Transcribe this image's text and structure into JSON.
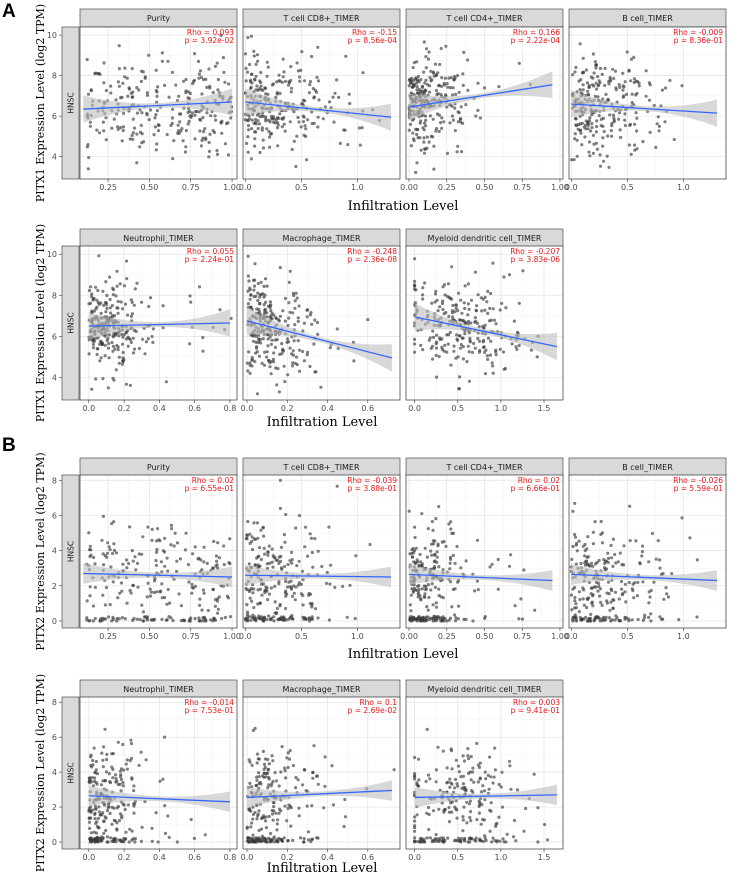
{
  "figure": {
    "blocks": [
      {
        "label": "A",
        "gene": "PITX1"
      },
      {
        "label": "B",
        "gene": "PITX2"
      }
    ],
    "strip_label": "HNSC",
    "colors": {
      "points": "#3b3b3b",
      "line": "#3366ff",
      "band": "#bebebe",
      "stats": "#e41a1c",
      "strip": "#d9d9d9"
    }
  },
  "chart_data": [
    {
      "type": "scatter",
      "block": "A",
      "title": "Purity",
      "xlabel": "Infiltration Level",
      "ylabel": "PITX1 Expression Level (log2 TPM)",
      "xlim": [
        0.08,
        1.03
      ],
      "ylim": [
        2.9,
        10.4
      ],
      "xticks": [
        0.25,
        0.5,
        0.75,
        1.0
      ],
      "xtick_labels": [
        "0.25",
        "0.50",
        "0.75",
        "1.00"
      ],
      "yticks": [
        4,
        6,
        8,
        10
      ],
      "ytick_labels": [
        "4",
        "6",
        "8",
        "10"
      ],
      "rho": "Rho = 0.093",
      "p": "p = 3.92e-02",
      "fit": {
        "x": [
          0.1,
          1.0
        ],
        "y": [
          6.35,
          6.7
        ]
      }
    },
    {
      "type": "scatter",
      "block": "A",
      "title": "T cell CD8+_TIMER",
      "xlabel": "Infiltration Level",
      "ylabel": "PITX1 Expression Level (log2 TPM)",
      "xlim": [
        -0.02,
        1.38
      ],
      "ylim": [
        2.9,
        10.4
      ],
      "xticks": [
        0,
        0.5,
        1.0
      ],
      "xtick_labels": [
        "0.0",
        "0.5",
        "1.0"
      ],
      "yticks": [
        4,
        6,
        8,
        10
      ],
      "ytick_labels": [
        "4",
        "6",
        "8",
        "10"
      ],
      "rho": "Rho = -0.15",
      "p": "p = 8.56e-04",
      "fit": {
        "x": [
          0.0,
          1.3
        ],
        "y": [
          6.7,
          5.95
        ]
      }
    },
    {
      "type": "scatter",
      "block": "A",
      "title": "T cell CD4+_TIMER",
      "xlabel": "Infiltration Level",
      "ylabel": "PITX1 Expression Level (log2 TPM)",
      "xlim": [
        -0.02,
        1.02
      ],
      "ylim": [
        2.9,
        10.4
      ],
      "xticks": [
        0,
        0.25,
        0.5,
        0.75,
        1.0
      ],
      "xtick_labels": [
        "0.00",
        "0.25",
        "0.50",
        "0.75",
        "1.00"
      ],
      "yticks": [
        4,
        6,
        8,
        10
      ],
      "ytick_labels": [
        "4",
        "6",
        "8",
        "10"
      ],
      "rho": "Rho = 0.166",
      "p": "p = 2.22e-04",
      "fit": {
        "x": [
          0.0,
          0.95
        ],
        "y": [
          6.45,
          7.55
        ]
      }
    },
    {
      "type": "scatter",
      "block": "A",
      "title": "B cell_TIMER",
      "xlabel": "Infiltration Level",
      "ylabel": "PITX1 Expression Level (log2 TPM)",
      "xlim": [
        -0.02,
        1.38
      ],
      "ylim": [
        2.9,
        10.4
      ],
      "xticks": [
        0,
        0.5,
        1.0
      ],
      "xtick_labels": [
        "0.0",
        "0.5",
        "1.0"
      ],
      "yticks": [
        4,
        6,
        8,
        10
      ],
      "ytick_labels": [
        "4",
        "6",
        "8",
        "10"
      ],
      "rho": "Rho = -0.009",
      "p": "p = 8.36e-01",
      "fit": {
        "x": [
          0.0,
          1.3
        ],
        "y": [
          6.6,
          6.15
        ]
      }
    },
    {
      "type": "scatter",
      "block": "A",
      "title": "Neutrophil_TIMER",
      "xlabel": "Infiltration Level",
      "ylabel": "PITX1 Expression Level (log2 TPM)",
      "xlim": [
        -0.05,
        0.84
      ],
      "ylim": [
        2.9,
        10.4
      ],
      "xticks": [
        0,
        0.2,
        0.4,
        0.6,
        0.8
      ],
      "xtick_labels": [
        "0.0",
        "0.2",
        "0.4",
        "0.6",
        "0.8"
      ],
      "yticks": [
        4,
        6,
        8,
        10
      ],
      "ytick_labels": [
        "4",
        "6",
        "8",
        "10"
      ],
      "rho": "Rho = 0.055",
      "p": "p = 2.24e-01",
      "fit": {
        "x": [
          0.0,
          0.8
        ],
        "y": [
          6.5,
          6.65
        ]
      }
    },
    {
      "type": "scatter",
      "block": "A",
      "title": "Macrophage_TIMER",
      "xlabel": "Infiltration Level",
      "ylabel": "PITX1 Expression Level (log2 TPM)",
      "xlim": [
        -0.02,
        0.76
      ],
      "ylim": [
        2.9,
        10.4
      ],
      "xticks": [
        0,
        0.2,
        0.4,
        0.6
      ],
      "xtick_labels": [
        "0.0",
        "0.2",
        "0.4",
        "0.6"
      ],
      "yticks": [
        4,
        6,
        8,
        10
      ],
      "ytick_labels": [
        "4",
        "6",
        "8",
        "10"
      ],
      "rho": "Rho = -0.248",
      "p": "p = 2.36e-08",
      "fit": {
        "x": [
          0.0,
          0.72
        ],
        "y": [
          6.75,
          4.95
        ]
      }
    },
    {
      "type": "scatter",
      "block": "A",
      "title": "Myeloid dendritic cell_TIMER",
      "xlabel": "Infiltration Level",
      "ylabel": "PITX1 Expression Level (log2 TPM)",
      "xlim": [
        -0.1,
        1.72
      ],
      "ylim": [
        2.9,
        10.4
      ],
      "xticks": [
        0,
        0.5,
        1.0,
        1.5
      ],
      "xtick_labels": [
        "0.0",
        "0.5",
        "1.0",
        "1.5"
      ],
      "yticks": [
        4,
        6,
        8,
        10
      ],
      "ytick_labels": [
        "4",
        "6",
        "8",
        "10"
      ],
      "rho": "Rho = -0.207",
      "p": "p = 3.83e-06",
      "fit": {
        "x": [
          0.0,
          1.65
        ],
        "y": [
          6.95,
          5.5
        ]
      }
    },
    {
      "type": "scatter",
      "block": "B",
      "title": "Purity",
      "xlabel": "Infiltration Level",
      "ylabel": "PITX2 Expression Level (log2 TPM)",
      "xlim": [
        0.08,
        1.03
      ],
      "ylim": [
        -0.4,
        8.3
      ],
      "xticks": [
        0.25,
        0.5,
        0.75,
        1.0
      ],
      "xtick_labels": [
        "0.25",
        "0.50",
        "0.75",
        "1.00"
      ],
      "yticks": [
        0,
        2,
        4,
        6,
        8
      ],
      "ytick_labels": [
        "0",
        "2",
        "4",
        "6",
        "8"
      ],
      "rho": "Rho = 0.02",
      "p": "p = 6.55e-01",
      "fit": {
        "x": [
          0.1,
          1.0
        ],
        "y": [
          2.7,
          2.5
        ]
      }
    },
    {
      "type": "scatter",
      "block": "B",
      "title": "T cell CD8+_TIMER",
      "xlabel": "Infiltration Level",
      "ylabel": "PITX2 Expression Level (log2 TPM)",
      "xlim": [
        -0.02,
        1.38
      ],
      "ylim": [
        -0.4,
        8.3
      ],
      "xticks": [
        0,
        0.5,
        1.0
      ],
      "xtick_labels": [
        "0.0",
        "0.5",
        "1.0"
      ],
      "yticks": [
        0,
        2,
        4,
        6,
        8
      ],
      "ytick_labels": [
        "0",
        "2",
        "4",
        "6",
        "8"
      ],
      "rho": "Rho = -0.039",
      "p": "p = 3.88e-01",
      "fit": {
        "x": [
          0.0,
          1.3
        ],
        "y": [
          2.6,
          2.5
        ]
      }
    },
    {
      "type": "scatter",
      "block": "B",
      "title": "T cell CD4+_TIMER",
      "xlabel": "Infiltration Level",
      "ylabel": "PITX2 Expression Level (log2 TPM)",
      "xlim": [
        -0.02,
        1.02
      ],
      "ylim": [
        -0.4,
        8.3
      ],
      "xticks": [
        0,
        0.25,
        0.5,
        0.75,
        1.0
      ],
      "xtick_labels": [
        "0.00",
        "0.25",
        "0.50",
        "0.75",
        "1.00"
      ],
      "yticks": [
        0,
        2,
        4,
        6,
        8
      ],
      "ytick_labels": [
        "0",
        "2",
        "4",
        "6",
        "8"
      ],
      "rho": "Rho = 0.02",
      "p": "p = 6.66e-01",
      "fit": {
        "x": [
          0.0,
          0.95
        ],
        "y": [
          2.65,
          2.3
        ]
      }
    },
    {
      "type": "scatter",
      "block": "B",
      "title": "B cell_TIMER",
      "xlabel": "Infiltration Level",
      "ylabel": "PITX2 Expression Level (log2 TPM)",
      "xlim": [
        -0.02,
        1.38
      ],
      "ylim": [
        -0.4,
        8.3
      ],
      "xticks": [
        0,
        0.5,
        1.0
      ],
      "xtick_labels": [
        "0.0",
        "0.5",
        "1.0"
      ],
      "yticks": [
        0,
        2,
        4,
        6,
        8
      ],
      "ytick_labels": [
        "0",
        "2",
        "4",
        "6",
        "8"
      ],
      "rho": "Rho = -0.026",
      "p": "p = 5.59e-01",
      "fit": {
        "x": [
          0.0,
          1.3
        ],
        "y": [
          2.65,
          2.3
        ]
      }
    },
    {
      "type": "scatter",
      "block": "B",
      "title": "Neutrophil_TIMER",
      "xlabel": "Infiltration Level",
      "ylabel": "PITX2 Expression Level (log2 TPM)",
      "xlim": [
        -0.05,
        0.84
      ],
      "ylim": [
        -0.4,
        8.3
      ],
      "xticks": [
        0,
        0.2,
        0.4,
        0.6,
        0.8
      ],
      "xtick_labels": [
        "0.0",
        "0.2",
        "0.4",
        "0.6",
        "0.8"
      ],
      "yticks": [
        0,
        2,
        4,
        6,
        8
      ],
      "ytick_labels": [
        "0",
        "2",
        "4",
        "6",
        "8"
      ],
      "rho": "Rho = -0.014",
      "p": "p = 7.53e-01",
      "fit": {
        "x": [
          0.0,
          0.8
        ],
        "y": [
          2.65,
          2.3
        ]
      }
    },
    {
      "type": "scatter",
      "block": "B",
      "title": "Macrophage_TIMER",
      "xlabel": "Infiltration Level",
      "ylabel": "PITX2 Expression Level (log2 TPM)",
      "xlim": [
        -0.02,
        0.76
      ],
      "ylim": [
        -0.4,
        8.3
      ],
      "xticks": [
        0,
        0.2,
        0.4,
        0.6
      ],
      "xtick_labels": [
        "0.0",
        "0.2",
        "0.4",
        "0.6"
      ],
      "yticks": [
        0,
        2,
        4,
        6,
        8
      ],
      "ytick_labels": [
        "0",
        "2",
        "4",
        "6",
        "8"
      ],
      "rho": "Rho = 0.1",
      "p": "p = 2.69e-02",
      "fit": {
        "x": [
          0.0,
          0.72
        ],
        "y": [
          2.55,
          2.95
        ]
      }
    },
    {
      "type": "scatter",
      "block": "B",
      "title": "Myeloid dendritic cell_TIMER",
      "xlabel": "Infiltration Level",
      "ylabel": "PITX2 Expression Level (log2 TPM)",
      "xlim": [
        -0.1,
        1.72
      ],
      "ylim": [
        -0.4,
        8.3
      ],
      "xticks": [
        0,
        0.5,
        1.0,
        1.5
      ],
      "xtick_labels": [
        "0.0",
        "0.5",
        "1.0",
        "1.5"
      ],
      "yticks": [
        0,
        2,
        4,
        6,
        8
      ],
      "ytick_labels": [
        "0",
        "2",
        "4",
        "6",
        "8"
      ],
      "rho": "Rho = 0.003",
      "p": "p = 9.41e-01",
      "fit": {
        "x": [
          0.0,
          1.65
        ],
        "y": [
          2.55,
          2.7
        ]
      }
    }
  ]
}
